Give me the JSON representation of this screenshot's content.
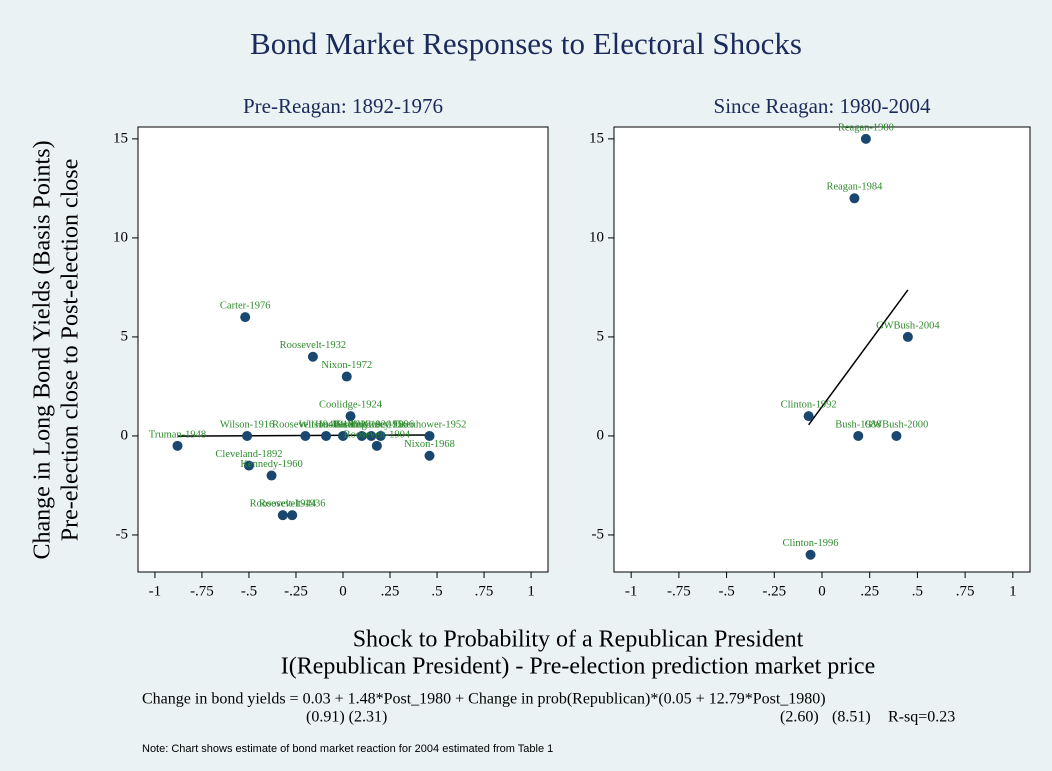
{
  "title": "Bond Market Responses to Electoral Shocks",
  "y_label": [
    "Change in Long Bond Yields (Basis Points)",
    "Pre-election close to Post-election close"
  ],
  "x_label": [
    "Shock to Probability of a Republican President",
    "I(Republican President) - Pre-election prediction market price"
  ],
  "equation": "Change in bond yields = 0.03 + 1.48*Post_1980 + Change in prob(Republican)*(0.05 + 12.79*Post_1980)",
  "standard_errors": [
    "(0.91) (2.31)",
    "(2.60)",
    "(8.51)"
  ],
  "r_squared": "R-sq=0.23",
  "note": "Note: Chart shows estimate of bond market reaction for 2004 estimated from Table 1",
  "chart_data": [
    {
      "type": "scatter",
      "title": "Pre-Reagan: 1892-1976",
      "x": [
        -0.52,
        -0.16,
        0.02,
        0.04,
        -0.88,
        -0.51,
        -0.2,
        -0.09,
        0.0,
        0.1,
        0.15,
        0.2,
        0.46,
        0.18,
        0.46,
        -0.5,
        -0.38,
        -0.32,
        -0.27
      ],
      "values": [
        6,
        4,
        3,
        1,
        -0.5,
        0,
        0,
        0,
        0,
        0,
        0,
        0,
        0,
        -0.5,
        -1,
        -1.5,
        -2,
        -4,
        -4
      ],
      "point_labels": [
        "Carter-1976",
        "Roosevelt-1932",
        "Nixon-1972",
        "Coolidge-1924",
        "Truman-1948",
        "Wilson-1916",
        "Roosevelt-1940",
        "Wilson-1912",
        "Hoover-1928",
        "Harding-1920",
        "Eisenhower-1956",
        "McKinley-1896",
        "Eisenhower-1952",
        "Roosevelt-1904",
        "Nixon-1968",
        "Cleveland-1892",
        "Kennedy-1960",
        "Roosevelt-1944",
        "Roosevelt-1936"
      ],
      "color": "#1a476f",
      "label_color": "#2e8b2e",
      "fit": {
        "x": [
          -0.88,
          0.46
        ],
        "y": [
          -0.01,
          0.05
        ]
      },
      "xlim": [
        -1.09,
        1.09
      ],
      "ylim": [
        -6.87,
        15.6
      ],
      "xticks": [
        -1,
        {
          "value": -0.75,
          "label": "-.75"
        },
        {
          "value": -0.5,
          "label": "-.5"
        },
        {
          "value": -0.25,
          "label": "-.25"
        },
        0,
        {
          "value": 0.25,
          "label": ".25"
        },
        {
          "value": 0.5,
          "label": ".5"
        },
        {
          "value": 0.75,
          "label": ".75"
        },
        1
      ],
      "yticks": [
        -5,
        0,
        5,
        10,
        15
      ]
    },
    {
      "type": "scatter",
      "title": "Since Reagan: 1980-2004",
      "x": [
        0.23,
        0.17,
        0.45,
        -0.07,
        0.19,
        0.39,
        -0.06
      ],
      "values": [
        15,
        12,
        5,
        1,
        0,
        0,
        -6
      ],
      "point_labels": [
        "Reagan-1980",
        "Reagan-1984",
        "GWBush-2004",
        "Clinton-1992",
        "Bush-1988",
        "GWBush-2000",
        "Clinton-1996"
      ],
      "color": "#1a476f",
      "label_color": "#2e8b2e",
      "fit": {
        "x": [
          -0.07,
          0.45
        ],
        "y": [
          0.56,
          7.37
        ]
      },
      "xlim": [
        -1.09,
        1.09
      ],
      "ylim": [
        -6.87,
        15.6
      ],
      "xticks": [
        -1,
        {
          "value": -0.75,
          "label": "-.75"
        },
        {
          "value": -0.5,
          "label": "-.5"
        },
        {
          "value": -0.25,
          "label": "-.25"
        },
        0,
        {
          "value": 0.25,
          "label": ".25"
        },
        {
          "value": 0.5,
          "label": ".5"
        },
        {
          "value": 0.75,
          "label": ".75"
        },
        1
      ],
      "yticks": [
        -5,
        0,
        5,
        10,
        15
      ]
    }
  ]
}
